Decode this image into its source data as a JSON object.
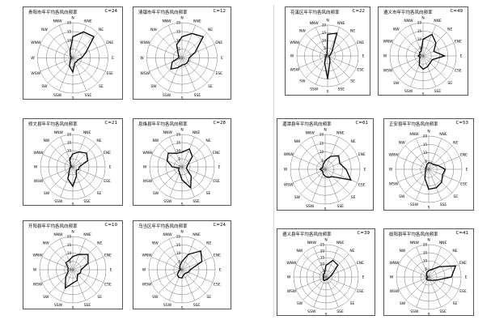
{
  "directions": [
    "N",
    "NNE",
    "NE",
    "ENE",
    "E",
    "ESE",
    "SE",
    "SSE",
    "S",
    "SSW",
    "SW",
    "WSW",
    "W",
    "WNW",
    "NW",
    "NNW"
  ],
  "chart_data": [
    {
      "type": "radar",
      "title": "贵阳市年平均各风向频率",
      "calm": "C=24",
      "rmax": 20,
      "ticks": [
        0,
        5,
        10,
        15,
        20
      ],
      "values": [
        12,
        16,
        17,
        8,
        5,
        3,
        3,
        3,
        8,
        5,
        2,
        1,
        1,
        1,
        2,
        4
      ]
    },
    {
      "type": "radar",
      "title": "清镇市年平均各风向频率",
      "calm": "C=12",
      "rmax": 20,
      "ticks": [
        0,
        5,
        10,
        15,
        20
      ],
      "values": [
        12,
        15,
        17,
        8,
        4,
        4,
        4,
        4,
        4,
        6,
        9,
        6,
        2,
        2,
        3,
        8
      ]
    },
    {
      "type": "radar",
      "title": "花溪区年平均各风向频率",
      "calm": "C=22",
      "rmax": 20,
      "ticks": [
        0,
        5,
        10,
        15,
        20
      ],
      "values": [
        14,
        16,
        4,
        2,
        1,
        1,
        2,
        4,
        15,
        5,
        2,
        1,
        1,
        1,
        1,
        1
      ]
    },
    {
      "type": "radar",
      "title": "遵义市年平均各风向频率",
      "calm": "C=49",
      "rmax": 20,
      "ticks": [
        0,
        5,
        10,
        15,
        20
      ],
      "values": [
        10,
        14,
        11,
        7,
        13,
        6,
        6,
        7,
        8,
        6,
        3,
        2,
        3,
        2,
        3,
        3
      ]
    },
    {
      "type": "radar",
      "title": "修文县年平均各风向频率",
      "calm": "C=21",
      "rmax": 20,
      "ticks": [
        0,
        5,
        10,
        15,
        20
      ],
      "values": [
        8,
        10,
        12,
        10,
        4,
        4,
        3,
        6,
        12,
        8,
        3,
        2,
        1,
        1,
        2,
        5
      ]
    },
    {
      "type": "radar",
      "title": "息烽县年平均各风向频率",
      "calm": "C=28",
      "rmax": 20,
      "ticks": [
        0,
        5,
        10,
        15,
        20
      ],
      "values": [
        9,
        12,
        9,
        4,
        3,
        3,
        8,
        14,
        8,
        4,
        3,
        2,
        6,
        10,
        12,
        9
      ]
    },
    {
      "type": "radar",
      "title": "湄潭县年平均各风向频率",
      "calm": "C=61",
      "rmax": 20,
      "ticks": [
        0,
        5,
        10,
        15,
        20
      ],
      "values": [
        5,
        8,
        11,
        9,
        12,
        16,
        6,
        5,
        4,
        3,
        2,
        2,
        3,
        2,
        2,
        3
      ]
    },
    {
      "type": "radar",
      "title": "正安县年平均各风向频率",
      "calm": "C=53",
      "rmax": 20,
      "ticks": [
        0,
        5,
        10,
        15,
        20
      ],
      "values": [
        4,
        4,
        4,
        6,
        10,
        9,
        11,
        12,
        12,
        6,
        3,
        2,
        2,
        2,
        2,
        3
      ]
    },
    {
      "type": "radar",
      "title": "开阳县年平均各风向频率",
      "calm": "C=10",
      "rmax": 20,
      "ticks": [
        0,
        5,
        10,
        15,
        20
      ],
      "values": [
        8,
        10,
        13,
        10,
        5,
        5,
        4,
        7,
        8,
        12,
        6,
        3,
        3,
        3,
        6,
        6
      ]
    },
    {
      "type": "radar",
      "title": "乌当区年平均各风向频率",
      "calm": "C=24",
      "rmax": 20,
      "ticks": [
        0,
        5,
        10,
        15,
        20
      ],
      "values": [
        5,
        10,
        16,
        13,
        5,
        4,
        3,
        3,
        5,
        5,
        4,
        2,
        1,
        1,
        2,
        3
      ]
    },
    {
      "type": "radar",
      "title": "遵义县年平均各风向频率",
      "calm": "C=39",
      "rmax": 25,
      "ticks": [
        0,
        5,
        10,
        15,
        20,
        25
      ],
      "values": [
        9,
        14,
        13,
        5,
        3,
        2,
        2,
        2,
        2,
        3,
        3,
        2,
        2,
        2,
        3,
        3
      ]
    },
    {
      "type": "radar",
      "title": "绥阳县年平均各风向频率",
      "calm": "C=41",
      "rmax": 20,
      "ticks": [
        0,
        5,
        10,
        15,
        20
      ],
      "values": [
        4,
        5,
        9,
        18,
        14,
        5,
        3,
        2,
        2,
        2,
        2,
        1,
        1,
        1,
        2,
        3
      ]
    }
  ]
}
